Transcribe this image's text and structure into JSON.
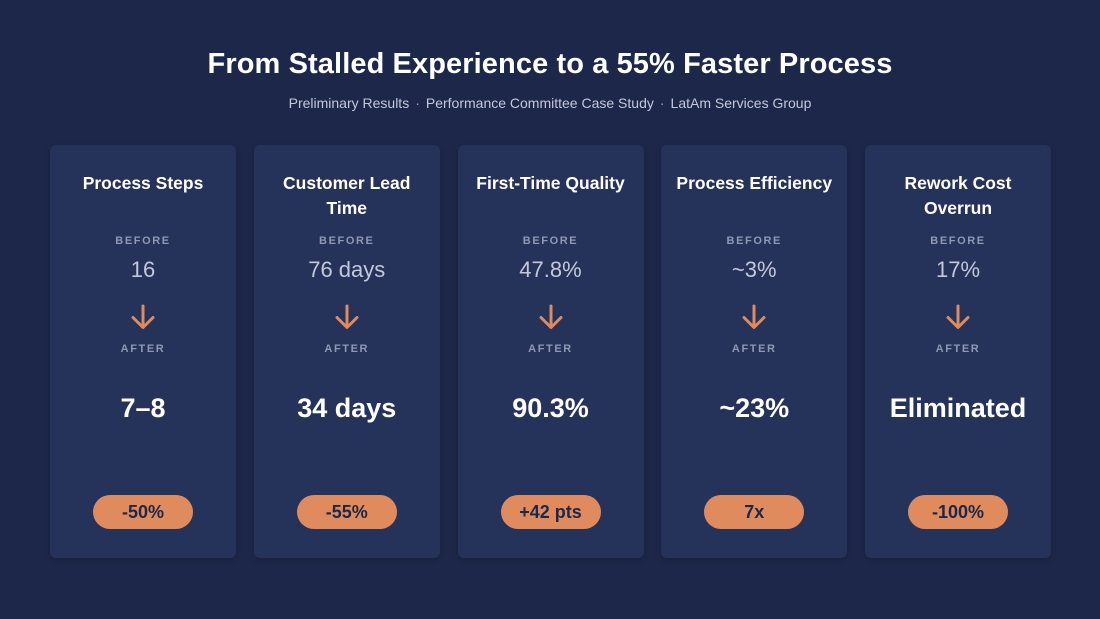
{
  "header": {
    "title": "From Stalled Experience to a 55% Faster Process",
    "subtitle_parts": [
      "Preliminary Results",
      "Performance Committee Case Study",
      "LatAm Services Group"
    ],
    "separator": "·"
  },
  "labels": {
    "before": "BEFORE",
    "after": "AFTER"
  },
  "colors": {
    "background": "#1d2749",
    "card": "#253259",
    "accent": "#e08b5d"
  },
  "cards": [
    {
      "title": "Process Steps",
      "before": "16",
      "after": "7–8",
      "badge": "-50%",
      "icon": "arrow-down-icon"
    },
    {
      "title": "Customer Lead Time",
      "before": "76 days",
      "after": "34 days",
      "badge": "-55%",
      "icon": "arrow-down-icon"
    },
    {
      "title": "First-Time Quality",
      "before": "47.8%",
      "after": "90.3%",
      "badge": "+42 pts",
      "icon": "arrow-down-icon"
    },
    {
      "title": "Process Efficiency",
      "before": "~3%",
      "after": "~23%",
      "badge": "7x",
      "icon": "arrow-down-icon"
    },
    {
      "title": "Rework Cost Overrun",
      "before": "17%",
      "after": "Eliminated",
      "badge": "-100%",
      "icon": "arrow-down-icon"
    }
  ]
}
